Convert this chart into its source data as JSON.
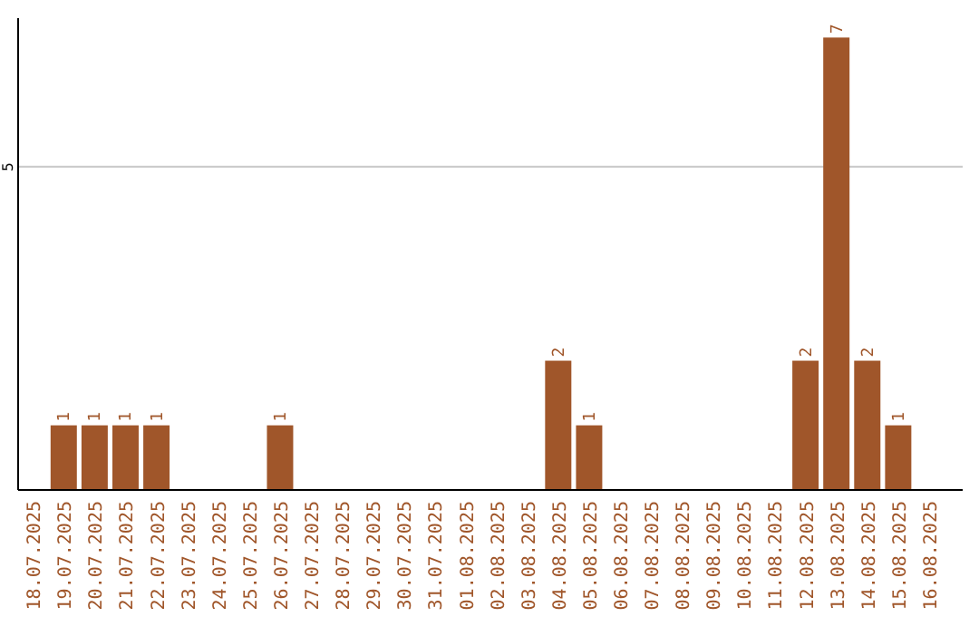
{
  "chart_data": {
    "type": "bar",
    "categories": [
      "18.07.2025",
      "19.07.2025",
      "20.07.2025",
      "21.07.2025",
      "22.07.2025",
      "23.07.2025",
      "24.07.2025",
      "25.07.2025",
      "26.07.2025",
      "27.07.2025",
      "28.07.2025",
      "29.07.2025",
      "30.07.2025",
      "31.07.2025",
      "01.08.2025",
      "02.08.2025",
      "03.08.2025",
      "04.08.2025",
      "05.08.2025",
      "06.08.2025",
      "07.08.2025",
      "08.08.2025",
      "09.08.2025",
      "10.08.2025",
      "11.08.2025",
      "12.08.2025",
      "13.08.2025",
      "14.08.2025",
      "15.08.2025",
      "16.08.2025"
    ],
    "values": [
      0,
      1,
      1,
      1,
      1,
      0,
      0,
      0,
      1,
      0,
      0,
      0,
      0,
      0,
      0,
      0,
      0,
      2,
      1,
      0,
      0,
      0,
      0,
      0,
      0,
      2,
      7,
      2,
      1,
      0
    ],
    "value_labels": [
      null,
      "1",
      "1",
      "1",
      "1",
      null,
      null,
      null,
      "1",
      null,
      null,
      null,
      null,
      null,
      null,
      null,
      null,
      "2",
      "1",
      null,
      null,
      null,
      null,
      null,
      null,
      "2",
      "7",
      "2",
      "1",
      null
    ],
    "color": "#a0562a",
    "ylim": [
      0,
      7.3
    ],
    "yticks": [
      5
    ],
    "grid": "y"
  }
}
